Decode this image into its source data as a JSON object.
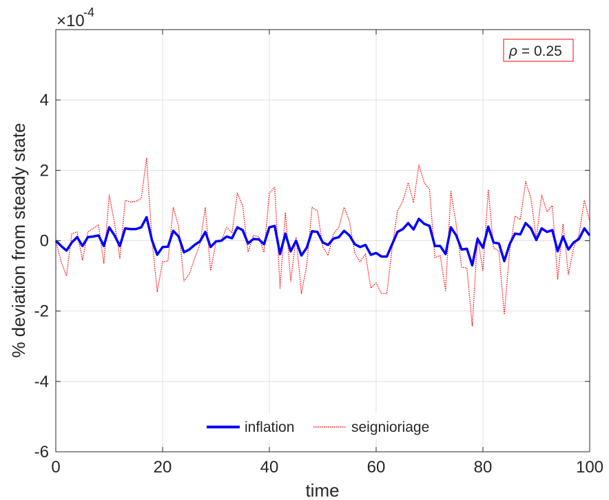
{
  "chart_data": {
    "type": "line",
    "xlabel": "time",
    "ylabel": "% deviation from steady state",
    "y_multiplier": "×10",
    "y_exponent": "-4",
    "annotation": {
      "symbol": "ρ",
      "text": " = 0.25",
      "border_color": "#ff0000"
    },
    "xlim": [
      0,
      100
    ],
    "ylim": [
      -6,
      6
    ],
    "x_ticks": [
      0,
      20,
      40,
      60,
      80,
      100
    ],
    "x_tick_labels": [
      "0",
      "20",
      "40",
      "60",
      "80",
      "100"
    ],
    "y_ticks": [
      -6,
      -4,
      -2,
      0,
      2,
      4
    ],
    "y_tick_labels": [
      "-6",
      "-4",
      "-2",
      "0",
      "2",
      "4"
    ],
    "grid": true,
    "legend_position": "bottom-center",
    "x": [
      0,
      1,
      2,
      3,
      4,
      5,
      6,
      7,
      8,
      9,
      10,
      11,
      12,
      13,
      14,
      15,
      16,
      17,
      18,
      19,
      20,
      21,
      22,
      23,
      24,
      25,
      26,
      27,
      28,
      29,
      30,
      31,
      32,
      33,
      34,
      35,
      36,
      37,
      38,
      39,
      40,
      41,
      42,
      43,
      44,
      45,
      46,
      47,
      48,
      49,
      50,
      51,
      52,
      53,
      54,
      55,
      56,
      57,
      58,
      59,
      60,
      61,
      62,
      63,
      64,
      65,
      66,
      67,
      68,
      69,
      70,
      71,
      72,
      73,
      74,
      75,
      76,
      77,
      78,
      79,
      80,
      81,
      82,
      83,
      84,
      85,
      86,
      87,
      88,
      89,
      90,
      91,
      92,
      93,
      94,
      95,
      96,
      97,
      98,
      99,
      100
    ],
    "series": [
      {
        "name": "inflation",
        "color": "#0000ff",
        "style": "solid",
        "values": [
          0,
          -0.15,
          -0.28,
          -0.05,
          0.1,
          -0.15,
          0.1,
          0.12,
          0.15,
          -0.15,
          0.38,
          0.15,
          -0.15,
          0.35,
          0.33,
          0.33,
          0.38,
          0.67,
          0.02,
          -0.4,
          -0.18,
          -0.17,
          0.28,
          0.12,
          -0.33,
          -0.25,
          -0.12,
          -0.02,
          0.25,
          -0.18,
          -0.02,
          0,
          0.12,
          0.07,
          0.38,
          0.3,
          -0.08,
          0.05,
          0.04,
          -0.1,
          0.38,
          0.42,
          -0.38,
          0.2,
          -0.3,
          0,
          -0.42,
          -0.2,
          0.27,
          0.25,
          -0.05,
          -0.12,
          0.06,
          0.1,
          0.28,
          0.15,
          -0.1,
          -0.18,
          -0.12,
          -0.4,
          -0.35,
          -0.45,
          -0.45,
          -0.1,
          0.25,
          0.33,
          0.5,
          0.32,
          0.62,
          0.48,
          0.42,
          -0.15,
          -0.15,
          -0.38,
          0.38,
          0.15,
          -0.25,
          -0.23,
          -0.7,
          0.05,
          -0.2,
          0.4,
          -0.05,
          -0.08,
          -0.58,
          -0.1,
          0.2,
          0.18,
          0.5,
          0.35,
          0.02,
          0.35,
          0.25,
          0.3,
          -0.3,
          0.12,
          -0.25,
          -0.05,
          0.05,
          0.35,
          0.15
        ]
      },
      {
        "name": "seignioriage",
        "color": "#ff0000",
        "style": "dotted",
        "values": [
          0,
          -0.6,
          -1,
          0.2,
          0.25,
          -0.55,
          0.25,
          0.35,
          0.45,
          -0.65,
          1.3,
          0.5,
          -0.5,
          1.15,
          1.1,
          1.12,
          1.2,
          2.35,
          0.05,
          -1.45,
          -0.6,
          -0.58,
          0.95,
          0.4,
          -1.15,
          -0.95,
          -0.5,
          -0.1,
          0.95,
          -0.85,
          -0.05,
          0,
          0.38,
          0.22,
          1.35,
          1.0,
          -0.32,
          0.15,
          0.12,
          -0.33,
          1.35,
          1.52,
          -1.35,
          0.8,
          -1.15,
          0.1,
          -1.5,
          -0.7,
          0.95,
          0.85,
          -0.18,
          -0.42,
          0.2,
          0.38,
          0.95,
          0.55,
          -0.35,
          -0.6,
          -0.38,
          -1.35,
          -1.2,
          -1.5,
          -1.5,
          -0.2,
          0.85,
          1.12,
          1.65,
          1.08,
          2.15,
          1.65,
          1.45,
          -0.48,
          -0.42,
          -1.42,
          1.4,
          0.45,
          -0.75,
          -0.78,
          -2.42,
          0.1,
          -0.85,
          1.45,
          -0.2,
          -0.3,
          -2.1,
          -0.3,
          0.7,
          0.6,
          1.68,
          1.2,
          0.05,
          1.3,
          0.82,
          1.0,
          -1.1,
          0.48,
          -0.95,
          -0.2,
          0.18,
          1.15,
          0.55
        ]
      }
    ]
  }
}
